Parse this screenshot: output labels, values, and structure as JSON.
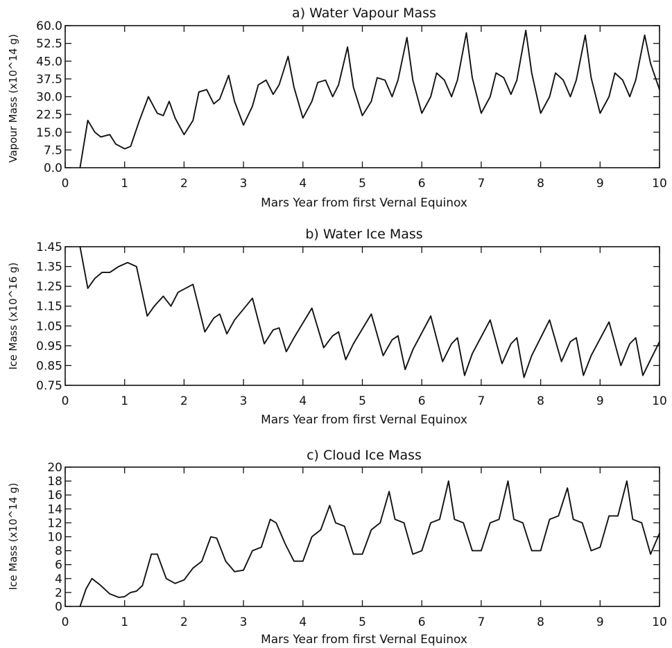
{
  "chart_data": [
    {
      "type": "line",
      "title": "a) Water Vapour Mass",
      "xlabel": "Mars Year from first Vernal Equinox",
      "ylabel": "Vapour Mass (x10^14 g)",
      "xlim": [
        0,
        10
      ],
      "ylim": [
        0,
        60
      ],
      "x_ticks": [
        "0",
        "1",
        "2",
        "3",
        "4",
        "5",
        "6",
        "7",
        "8",
        "9",
        "10"
      ],
      "y_ticks": [
        "0.0",
        "7.5",
        "15.0",
        "22.5",
        "30.0",
        "37.5",
        "45.0",
        "52.5",
        "60.0"
      ],
      "series": [
        {
          "x": [
            0.25,
            0.38,
            0.5,
            0.6,
            0.75,
            0.85,
            1.0,
            1.1,
            1.25,
            1.4,
            1.55,
            1.65,
            1.75,
            1.85,
            2.0,
            2.15,
            2.25,
            2.38,
            2.5,
            2.6,
            2.75,
            2.85,
            3.0,
            3.15,
            3.25,
            3.38,
            3.5,
            3.6,
            3.75,
            3.85,
            4.0,
            4.15,
            4.25,
            4.38,
            4.5,
            4.6,
            4.75,
            4.85,
            5.0,
            5.15,
            5.25,
            5.38,
            5.5,
            5.6,
            5.75,
            5.85,
            6.0,
            6.15,
            6.25,
            6.38,
            6.5,
            6.6,
            6.75,
            6.85,
            7.0,
            7.15,
            7.25,
            7.38,
            7.5,
            7.6,
            7.75,
            7.85,
            8.0,
            8.15,
            8.25,
            8.38,
            8.5,
            8.6,
            8.75,
            8.85,
            9.0,
            9.15,
            9.25,
            9.38,
            9.5,
            9.6,
            9.75,
            9.85,
            10.0
          ],
          "y": [
            0,
            20,
            15,
            13,
            14,
            10,
            8,
            9,
            20,
            30,
            23,
            22,
            28,
            21,
            14,
            20,
            32,
            33,
            27,
            29,
            39,
            28,
            18,
            26,
            35,
            37,
            31,
            35,
            47,
            34,
            21,
            28,
            36,
            37,
            30,
            35,
            51,
            34,
            22,
            28,
            38,
            37,
            30,
            37,
            55,
            37,
            23,
            30,
            40,
            37,
            30,
            37,
            57,
            38,
            23,
            30,
            40,
            38,
            31,
            37,
            58,
            40,
            23,
            30,
            40,
            37,
            30,
            37,
            56,
            38,
            23,
            30,
            40,
            37,
            30,
            37,
            56,
            44,
            33
          ]
        }
      ]
    },
    {
      "type": "line",
      "title": "b) Water Ice Mass",
      "xlabel": "Mars Year from first Vernal Equinox",
      "ylabel": "Ice Mass (x10^16 g)",
      "xlim": [
        0,
        10
      ],
      "ylim": [
        0.75,
        1.45
      ],
      "x_ticks": [
        "0",
        "1",
        "2",
        "3",
        "4",
        "5",
        "6",
        "7",
        "8",
        "9",
        "10"
      ],
      "y_ticks": [
        "0.75",
        "0.85",
        "0.95",
        "1.05",
        "1.15",
        "1.25",
        "1.35",
        "1.45"
      ],
      "series": [
        {
          "x": [
            0.25,
            0.38,
            0.5,
            0.62,
            0.75,
            0.9,
            1.05,
            1.2,
            1.38,
            1.5,
            1.65,
            1.78,
            1.9,
            2.15,
            2.35,
            2.5,
            2.6,
            2.72,
            2.85,
            3.15,
            3.35,
            3.5,
            3.6,
            3.72,
            3.85,
            4.15,
            4.35,
            4.5,
            4.6,
            4.72,
            4.85,
            5.15,
            5.35,
            5.5,
            5.6,
            5.72,
            5.85,
            6.15,
            6.35,
            6.5,
            6.6,
            6.72,
            6.85,
            7.15,
            7.35,
            7.5,
            7.6,
            7.72,
            7.85,
            8.15,
            8.35,
            8.5,
            8.6,
            8.72,
            8.85,
            9.15,
            9.35,
            9.5,
            9.6,
            9.72,
            9.85,
            10.0
          ],
          "y": [
            1.45,
            1.24,
            1.29,
            1.32,
            1.32,
            1.35,
            1.37,
            1.35,
            1.1,
            1.15,
            1.2,
            1.15,
            1.22,
            1.26,
            1.02,
            1.09,
            1.11,
            1.01,
            1.08,
            1.19,
            0.96,
            1.03,
            1.04,
            0.92,
            0.99,
            1.14,
            0.94,
            1.0,
            1.02,
            0.88,
            0.96,
            1.11,
            0.9,
            0.98,
            1.0,
            0.83,
            0.93,
            1.1,
            0.87,
            0.96,
            0.99,
            0.8,
            0.91,
            1.08,
            0.86,
            0.96,
            0.99,
            0.79,
            0.9,
            1.08,
            0.87,
            0.97,
            0.99,
            0.8,
            0.9,
            1.07,
            0.85,
            0.96,
            0.99,
            0.8,
            0.88,
            0.97
          ]
        }
      ]
    },
    {
      "type": "line",
      "title": "c) Cloud Ice Mass",
      "xlabel": "Mars Year from first Vernal Equinox",
      "ylabel": "Ice Mass (x10^14 g)",
      "xlim": [
        0,
        10
      ],
      "ylim": [
        0,
        20
      ],
      "x_ticks": [
        "0",
        "1",
        "2",
        "3",
        "4",
        "5",
        "6",
        "7",
        "8",
        "9",
        "10"
      ],
      "y_ticks": [
        "0",
        "2",
        "4",
        "6",
        "8",
        "10",
        "12",
        "14",
        "16",
        "18",
        "20"
      ],
      "series": [
        {
          "x": [
            0.25,
            0.35,
            0.45,
            0.6,
            0.75,
            0.9,
            1.0,
            1.1,
            1.2,
            1.3,
            1.45,
            1.55,
            1.7,
            1.85,
            2.0,
            2.15,
            2.3,
            2.45,
            2.55,
            2.7,
            2.85,
            3.0,
            3.15,
            3.3,
            3.45,
            3.55,
            3.7,
            3.85,
            4.0,
            4.15,
            4.3,
            4.45,
            4.55,
            4.7,
            4.85,
            5.0,
            5.15,
            5.3,
            5.45,
            5.55,
            5.7,
            5.85,
            6.0,
            6.15,
            6.3,
            6.45,
            6.55,
            6.7,
            6.85,
            7.0,
            7.15,
            7.3,
            7.45,
            7.55,
            7.7,
            7.85,
            8.0,
            8.15,
            8.3,
            8.45,
            8.55,
            8.7,
            8.85,
            9.0,
            9.15,
            9.3,
            9.45,
            9.55,
            9.7,
            9.85,
            10.0
          ],
          "y": [
            0,
            2.5,
            4.0,
            3.0,
            1.8,
            1.3,
            1.4,
            2.0,
            2.2,
            3.0,
            7.5,
            7.5,
            4.0,
            3.3,
            3.8,
            5.5,
            6.5,
            10.0,
            9.8,
            6.5,
            5.0,
            5.2,
            8.0,
            8.5,
            12.5,
            12.0,
            9.0,
            6.5,
            6.5,
            10.0,
            11.0,
            14.5,
            12.0,
            11.5,
            7.5,
            7.5,
            11.0,
            12.0,
            16.5,
            12.5,
            12.0,
            7.5,
            8.0,
            12.0,
            12.5,
            18.0,
            12.5,
            12.0,
            8.0,
            8.0,
            12.0,
            12.5,
            18.0,
            12.5,
            12.0,
            8.0,
            8.0,
            12.5,
            13.0,
            17.0,
            12.5,
            12.0,
            8.0,
            8.5,
            13.0,
            13.0,
            18.0,
            12.5,
            12.0,
            7.5,
            10.5
          ]
        }
      ]
    }
  ]
}
